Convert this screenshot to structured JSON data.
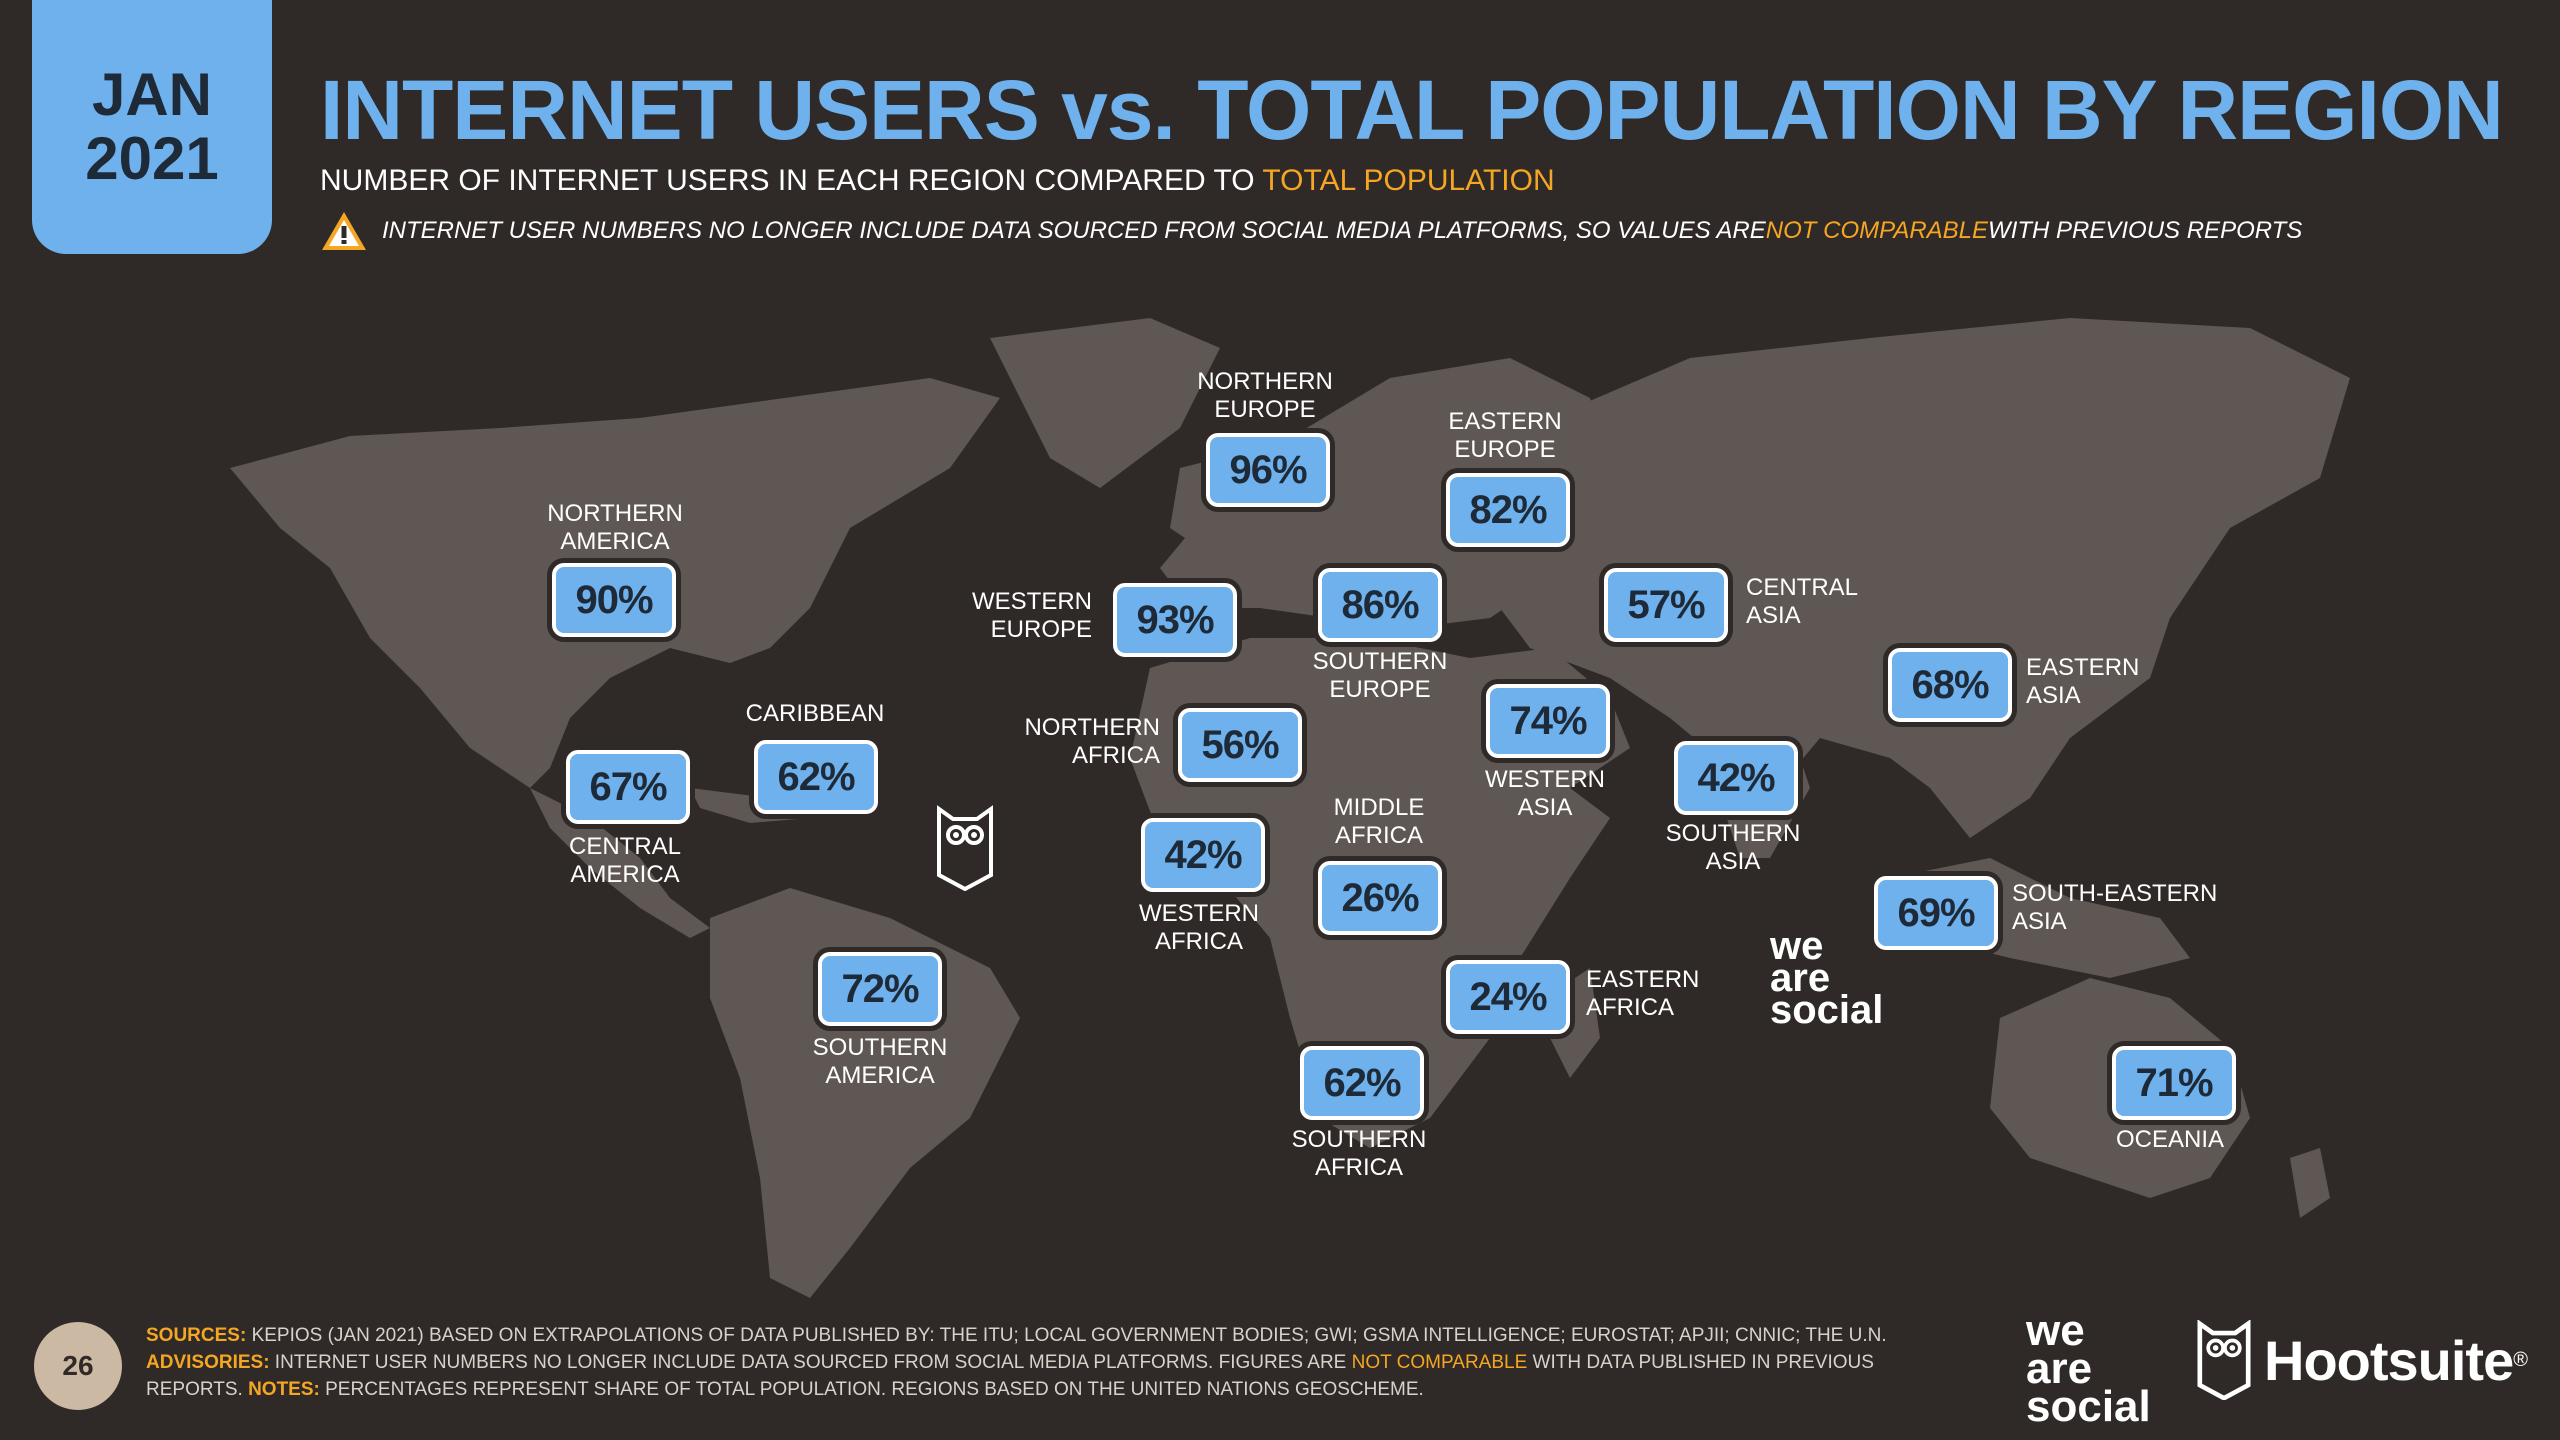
{
  "header": {
    "date_month": "JAN",
    "date_year": "2021",
    "title": "INTERNET USERS vs. TOTAL POPULATION BY REGION",
    "subtitle_prefix": "NUMBER OF INTERNET USERS IN EACH REGION COMPARED TO ",
    "subtitle_accent": "TOTAL POPULATION",
    "warning_prefix": "INTERNET USER NUMBERS NO LONGER INCLUDE DATA SOURCED FROM SOCIAL MEDIA PLATFORMS, SO VALUES ARE ",
    "warning_accent": "NOT COMPARABLE",
    "warning_suffix": " WITH PREVIOUS REPORTS"
  },
  "regions": [
    {
      "id": "northern-america",
      "value": "90%",
      "label_l1": "NORTHERN",
      "label_l2": "AMERICA"
    },
    {
      "id": "central-america",
      "value": "67%",
      "label_l1": "CENTRAL",
      "label_l2": "AMERICA"
    },
    {
      "id": "caribbean",
      "value": "62%",
      "label_l1": "CARIBBEAN",
      "label_l2": ""
    },
    {
      "id": "southern-america",
      "value": "72%",
      "label_l1": "SOUTHERN",
      "label_l2": "AMERICA"
    },
    {
      "id": "northern-europe",
      "value": "96%",
      "label_l1": "NORTHERN",
      "label_l2": "EUROPE"
    },
    {
      "id": "western-europe",
      "value": "93%",
      "label_l1": "WESTERN",
      "label_l2": "EUROPE"
    },
    {
      "id": "southern-europe",
      "value": "86%",
      "label_l1": "SOUTHERN",
      "label_l2": "EUROPE"
    },
    {
      "id": "eastern-europe",
      "value": "82%",
      "label_l1": "EASTERN",
      "label_l2": "EUROPE"
    },
    {
      "id": "northern-africa",
      "value": "56%",
      "label_l1": "NORTHERN",
      "label_l2": "AFRICA"
    },
    {
      "id": "western-africa",
      "value": "42%",
      "label_l1": "WESTERN",
      "label_l2": "AFRICA"
    },
    {
      "id": "middle-africa",
      "value": "26%",
      "label_l1": "MIDDLE",
      "label_l2": "AFRICA"
    },
    {
      "id": "eastern-africa",
      "value": "24%",
      "label_l1": "EASTERN",
      "label_l2": "AFRICA"
    },
    {
      "id": "southern-africa",
      "value": "62%",
      "label_l1": "SOUTHERN",
      "label_l2": "AFRICA"
    },
    {
      "id": "western-asia",
      "value": "74%",
      "label_l1": "WESTERN",
      "label_l2": "ASIA"
    },
    {
      "id": "central-asia",
      "value": "57%",
      "label_l1": "CENTRAL",
      "label_l2": "ASIA"
    },
    {
      "id": "southern-asia",
      "value": "42%",
      "label_l1": "SOUTHERN",
      "label_l2": "ASIA"
    },
    {
      "id": "eastern-asia",
      "value": "68%",
      "label_l1": "EASTERN",
      "label_l2": "ASIA"
    },
    {
      "id": "south-eastern-asia",
      "value": "69%",
      "label_l1": "SOUTH-EASTERN",
      "label_l2": "ASIA"
    },
    {
      "id": "oceania",
      "value": "71%",
      "label_l1": "OCEANIA",
      "label_l2": ""
    }
  ],
  "map_watermark": {
    "line1": "we",
    "line2": "are",
    "line3": "social"
  },
  "footer": {
    "page_number": "26",
    "sources_label": "SOURCES:",
    "sources_text": " KEPIOS (JAN 2021) BASED ON EXTRAPOLATIONS OF DATA PUBLISHED BY: THE ITU; LOCAL GOVERNMENT BODIES; GWI; GSMA INTELLIGENCE; EUROSTAT; APJII; CNNIC; THE U.N.",
    "advisories_label": "ADVISORIES:",
    "advisories_text": " INTERNET USER NUMBERS NO LONGER INCLUDE DATA SOURCED FROM SOCIAL MEDIA PLATFORMS. FIGURES ARE ",
    "advisories_accent": "NOT COMPARABLE",
    "advisories_suffix": " WITH DATA PUBLISHED IN PREVIOUS REPORTS. ",
    "notes_label": "NOTES:",
    "notes_text": " PERCENTAGES REPRESENT SHARE OF TOTAL POPULATION. REGIONS BASED ON THE UNITED NATIONS GEOSCHEME.",
    "was_line1": "we",
    "was_line2": "are",
    "was_line3": "social",
    "hootsuite": "Hootsuite",
    "hootsuite_mark": "®"
  },
  "colors": {
    "background": "#2f2a27",
    "accent_blue": "#6fb1ec",
    "accent_orange": "#f5a623",
    "land": "#5e5753"
  }
}
